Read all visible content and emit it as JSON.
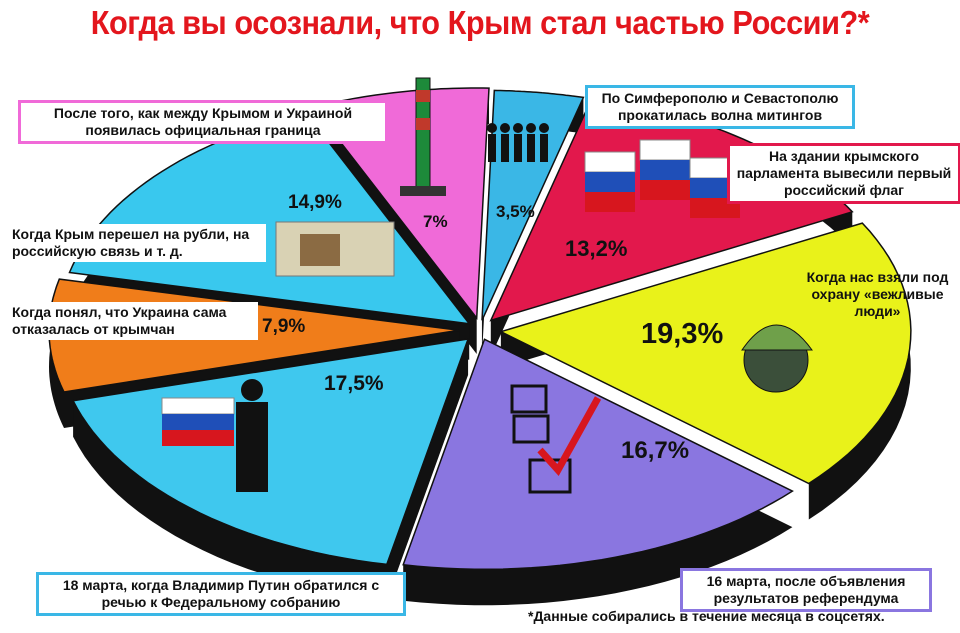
{
  "title": "Когда вы осознали, что Крым стал частью России?*",
  "footnote": "*Данные собирались в течение месяца в соцсетях.",
  "chart_data": {
    "type": "pie",
    "title": "Когда вы осознали, что Крым стал частью России?*",
    "slices": [
      {
        "label": "По Симферополю и Севастополю прокатилась волна митингов",
        "value": 3.5,
        "value_label": "3,5%",
        "color": "#3ab7e6"
      },
      {
        "label": "На здании крымского парламента вывесили первый российский флаг",
        "value": 13.2,
        "value_label": "13,2%",
        "color": "#e2184c"
      },
      {
        "label": "Когда нас взяли под охрану «вежливые люди»",
        "value": 19.3,
        "value_label": "19,3%",
        "color": "#e9f21a"
      },
      {
        "label": "16 марта, после объявления результатов референдума",
        "value": 16.7,
        "value_label": "16,7%",
        "color": "#8a76e0"
      },
      {
        "label": "18 марта, когда Владимир Путин обратился с речью к Федеральному собранию",
        "value": 17.5,
        "value_label": "17,5%",
        "color": "#3fc8ee"
      },
      {
        "label": "Когда понял, что Украина сама отказалась от крымчан",
        "value": 7.9,
        "value_label": "7,9%",
        "color": "#f07d1a"
      },
      {
        "label": "Когда Крым перешел на рубли, на российскую связь и т. д.",
        "value": 14.9,
        "value_label": "14,9%",
        "color": "#39c8ee"
      },
      {
        "label": "После того, как между Крымом и Украиной появилась официальная граница",
        "value": 7.0,
        "value_label": "7%",
        "color": "#f06ad8"
      }
    ]
  },
  "labels": {
    "mitingi": "По Симферополю и Севастополю прокатилась волна митингов",
    "flag": "На здании крымского парламента вывесили первый российский флаг",
    "vezhlivye": "Когда нас взяли под охрану «вежливые люди»",
    "referendum": "16 марта, после объявления результатов референдума",
    "putin": "18 марта, когда Владимир Путин обратился с речью к Федеральному собранию",
    "ukraina": "Когда понял, что Украина сама отказалась от крымчан",
    "rubli": "Когда Крым перешел на рубли, на российскую связь и т. д.",
    "granica": "После того, как между Крымом и Украиной появилась официальная граница"
  },
  "colors": {
    "title": "#e3161d",
    "box_mitingi": "#3ab7e6",
    "box_flag": "#e2184c",
    "box_referendum": "#8a76e0",
    "box_putin": "#3ab7e6",
    "box_granica": "#f06ad8"
  }
}
